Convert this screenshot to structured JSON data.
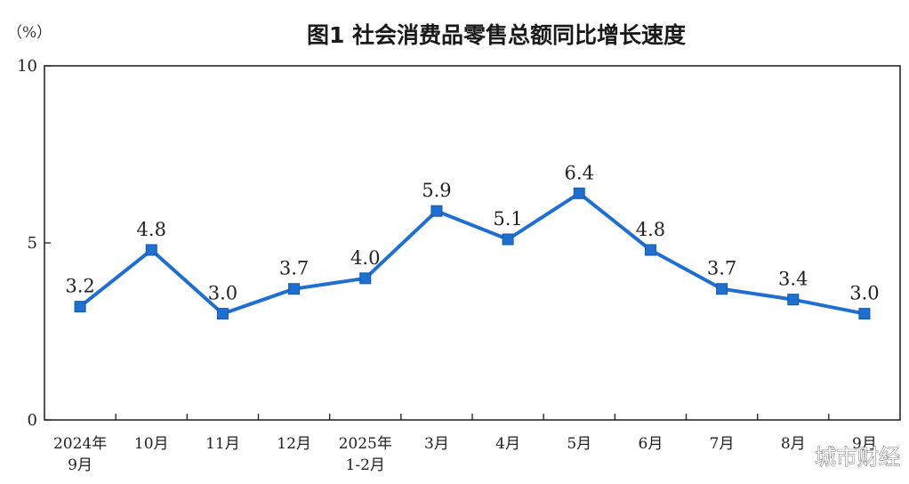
{
  "chart_data": {
    "type": "line",
    "title": "图1  社会消费品零售总额同比增长速度",
    "unit": "（%）",
    "categories": [
      [
        "2024年",
        "9月"
      ],
      [
        "10月"
      ],
      [
        "11月"
      ],
      [
        "12月"
      ],
      [
        "2025年",
        "1-2月"
      ],
      [
        "3月"
      ],
      [
        "4月"
      ],
      [
        "5月"
      ],
      [
        "6月"
      ],
      [
        "7月"
      ],
      [
        "8月"
      ],
      [
        "9月"
      ]
    ],
    "values": [
      3.2,
      4.8,
      3.0,
      3.7,
      4.0,
      5.9,
      5.1,
      6.4,
      4.8,
      3.7,
      3.4,
      3.0
    ],
    "value_labels": [
      "3.2",
      "4.8",
      "3.0",
      "3.7",
      "4.0",
      "5.9",
      "5.1",
      "6.4",
      "4.8",
      "3.7",
      "3.4",
      "3.0"
    ],
    "ylim": [
      0,
      10
    ],
    "yticks": [
      "0",
      "5",
      "10"
    ],
    "grid": false,
    "line_color": "#1f6fd1",
    "axis_color": "#2a2a2a"
  },
  "watermark": "城市财经"
}
